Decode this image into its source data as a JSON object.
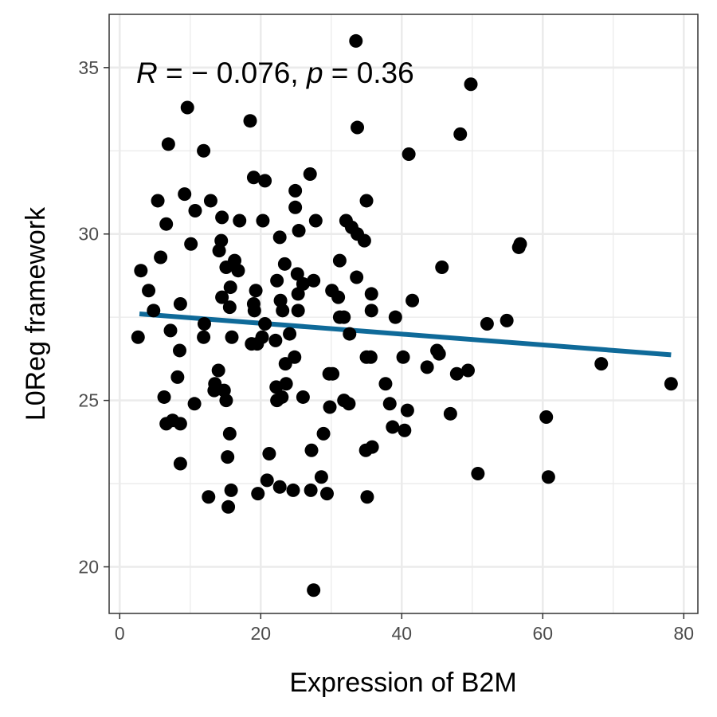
{
  "chart_data": {
    "type": "scatter",
    "xlabel": "Expression of B2M",
    "ylabel": "L0Reg framework",
    "xlim": [
      -1.5,
      82
    ],
    "ylim": [
      18.6,
      36.6
    ],
    "x_ticks": [
      0,
      20,
      40,
      60,
      80
    ],
    "y_ticks": [
      20,
      25,
      30,
      35
    ],
    "grid": true,
    "annotation": {
      "r_symbol": "R",
      "r_text": " = − 0.076, ",
      "p_symbol": "p",
      "p_text": " = 0.36"
    },
    "fit_line": {
      "x": [
        2.8,
        78.2
      ],
      "y": [
        27.6,
        26.37
      ],
      "color": "#0f6a99"
    },
    "point_color": "#000000",
    "points": [
      {
        "x": 33.5,
        "y": 35.8
      },
      {
        "x": 49.8,
        "y": 34.5
      },
      {
        "x": 9.6,
        "y": 33.8
      },
      {
        "x": 18.5,
        "y": 33.4
      },
      {
        "x": 33.7,
        "y": 33.2
      },
      {
        "x": 48.3,
        "y": 33.0
      },
      {
        "x": 6.9,
        "y": 32.7
      },
      {
        "x": 11.9,
        "y": 32.5
      },
      {
        "x": 41.0,
        "y": 32.4
      },
      {
        "x": 27.0,
        "y": 31.8
      },
      {
        "x": 19.0,
        "y": 31.7
      },
      {
        "x": 20.6,
        "y": 31.6
      },
      {
        "x": 24.9,
        "y": 31.3
      },
      {
        "x": 9.2,
        "y": 31.2
      },
      {
        "x": 5.4,
        "y": 31.0
      },
      {
        "x": 12.9,
        "y": 31.0
      },
      {
        "x": 35.0,
        "y": 31.0
      },
      {
        "x": 24.9,
        "y": 30.8
      },
      {
        "x": 10.7,
        "y": 30.7
      },
      {
        "x": 14.5,
        "y": 30.5
      },
      {
        "x": 32.1,
        "y": 30.4
      },
      {
        "x": 6.6,
        "y": 30.3
      },
      {
        "x": 17.0,
        "y": 30.4
      },
      {
        "x": 20.3,
        "y": 30.4
      },
      {
        "x": 27.8,
        "y": 30.4
      },
      {
        "x": 32.9,
        "y": 30.2
      },
      {
        "x": 25.4,
        "y": 30.1
      },
      {
        "x": 33.7,
        "y": 30.0
      },
      {
        "x": 22.7,
        "y": 29.9
      },
      {
        "x": 34.7,
        "y": 29.8
      },
      {
        "x": 14.4,
        "y": 29.8
      },
      {
        "x": 10.1,
        "y": 29.7
      },
      {
        "x": 56.8,
        "y": 29.7
      },
      {
        "x": 56.6,
        "y": 29.6
      },
      {
        "x": 14.1,
        "y": 29.5
      },
      {
        "x": 5.8,
        "y": 29.3
      },
      {
        "x": 31.2,
        "y": 29.2
      },
      {
        "x": 16.3,
        "y": 29.2
      },
      {
        "x": 23.4,
        "y": 29.1
      },
      {
        "x": 15.1,
        "y": 29.0
      },
      {
        "x": 45.7,
        "y": 29.0
      },
      {
        "x": 3.0,
        "y": 28.9
      },
      {
        "x": 16.8,
        "y": 28.9
      },
      {
        "x": 25.2,
        "y": 28.8
      },
      {
        "x": 33.6,
        "y": 28.7
      },
      {
        "x": 22.3,
        "y": 28.6
      },
      {
        "x": 27.5,
        "y": 28.6
      },
      {
        "x": 26.0,
        "y": 28.5
      },
      {
        "x": 15.7,
        "y": 28.4
      },
      {
        "x": 4.1,
        "y": 28.3
      },
      {
        "x": 19.3,
        "y": 28.3
      },
      {
        "x": 30.1,
        "y": 28.3
      },
      {
        "x": 35.7,
        "y": 28.2
      },
      {
        "x": 25.3,
        "y": 28.2
      },
      {
        "x": 31.0,
        "y": 28.1
      },
      {
        "x": 14.5,
        "y": 28.1
      },
      {
        "x": 22.8,
        "y": 28.0
      },
      {
        "x": 41.5,
        "y": 28.0
      },
      {
        "x": 8.6,
        "y": 27.9
      },
      {
        "x": 19.0,
        "y": 27.9
      },
      {
        "x": 15.6,
        "y": 27.8
      },
      {
        "x": 19.1,
        "y": 27.7
      },
      {
        "x": 23.1,
        "y": 27.7
      },
      {
        "x": 35.7,
        "y": 27.7
      },
      {
        "x": 4.8,
        "y": 27.7
      },
      {
        "x": 25.3,
        "y": 27.7
      },
      {
        "x": 39.1,
        "y": 27.5
      },
      {
        "x": 31.2,
        "y": 27.5
      },
      {
        "x": 54.9,
        "y": 27.4
      },
      {
        "x": 31.8,
        "y": 27.5
      },
      {
        "x": 20.6,
        "y": 27.3
      },
      {
        "x": 12.0,
        "y": 27.3
      },
      {
        "x": 52.1,
        "y": 27.3
      },
      {
        "x": 7.2,
        "y": 27.1
      },
      {
        "x": 24.1,
        "y": 27.0
      },
      {
        "x": 32.6,
        "y": 27.0
      },
      {
        "x": 2.6,
        "y": 26.9
      },
      {
        "x": 11.9,
        "y": 26.9
      },
      {
        "x": 15.9,
        "y": 26.9
      },
      {
        "x": 20.2,
        "y": 26.9
      },
      {
        "x": 22.1,
        "y": 26.8
      },
      {
        "x": 18.7,
        "y": 26.7
      },
      {
        "x": 19.5,
        "y": 26.7
      },
      {
        "x": 8.5,
        "y": 26.5
      },
      {
        "x": 45.0,
        "y": 26.5
      },
      {
        "x": 45.3,
        "y": 26.4
      },
      {
        "x": 40.2,
        "y": 26.3
      },
      {
        "x": 35.0,
        "y": 26.3
      },
      {
        "x": 35.6,
        "y": 26.3
      },
      {
        "x": 24.8,
        "y": 26.3
      },
      {
        "x": 68.3,
        "y": 26.1
      },
      {
        "x": 23.5,
        "y": 26.1
      },
      {
        "x": 43.6,
        "y": 26.0
      },
      {
        "x": 14.0,
        "y": 25.9
      },
      {
        "x": 47.8,
        "y": 25.8
      },
      {
        "x": 49.4,
        "y": 25.9
      },
      {
        "x": 29.7,
        "y": 25.8
      },
      {
        "x": 30.2,
        "y": 25.8
      },
      {
        "x": 8.2,
        "y": 25.7
      },
      {
        "x": 78.2,
        "y": 25.5
      },
      {
        "x": 23.6,
        "y": 25.5
      },
      {
        "x": 13.5,
        "y": 25.5
      },
      {
        "x": 37.7,
        "y": 25.5
      },
      {
        "x": 22.2,
        "y": 25.4
      },
      {
        "x": 14.8,
        "y": 25.3
      },
      {
        "x": 13.4,
        "y": 25.3
      },
      {
        "x": 26.0,
        "y": 25.1
      },
      {
        "x": 6.3,
        "y": 25.1
      },
      {
        "x": 23.0,
        "y": 25.1
      },
      {
        "x": 31.8,
        "y": 25.0
      },
      {
        "x": 15.1,
        "y": 25.0
      },
      {
        "x": 22.3,
        "y": 25.0
      },
      {
        "x": 32.5,
        "y": 24.9
      },
      {
        "x": 38.3,
        "y": 24.9
      },
      {
        "x": 10.6,
        "y": 24.9
      },
      {
        "x": 29.8,
        "y": 24.8
      },
      {
        "x": 40.8,
        "y": 24.7
      },
      {
        "x": 46.9,
        "y": 24.6
      },
      {
        "x": 60.5,
        "y": 24.5
      },
      {
        "x": 7.5,
        "y": 24.4
      },
      {
        "x": 6.6,
        "y": 24.3
      },
      {
        "x": 8.6,
        "y": 24.3
      },
      {
        "x": 38.7,
        "y": 24.2
      },
      {
        "x": 40.4,
        "y": 24.1
      },
      {
        "x": 28.9,
        "y": 24.0
      },
      {
        "x": 15.6,
        "y": 24.0
      },
      {
        "x": 35.8,
        "y": 23.6
      },
      {
        "x": 34.9,
        "y": 23.5
      },
      {
        "x": 21.2,
        "y": 23.4
      },
      {
        "x": 27.2,
        "y": 23.5
      },
      {
        "x": 15.3,
        "y": 23.3
      },
      {
        "x": 8.6,
        "y": 23.1
      },
      {
        "x": 50.8,
        "y": 22.8
      },
      {
        "x": 60.8,
        "y": 22.7
      },
      {
        "x": 28.6,
        "y": 22.7
      },
      {
        "x": 20.9,
        "y": 22.6
      },
      {
        "x": 22.7,
        "y": 22.4
      },
      {
        "x": 24.6,
        "y": 22.3
      },
      {
        "x": 27.1,
        "y": 22.3
      },
      {
        "x": 15.8,
        "y": 22.3
      },
      {
        "x": 19.6,
        "y": 22.2
      },
      {
        "x": 29.4,
        "y": 22.2
      },
      {
        "x": 35.1,
        "y": 22.1
      },
      {
        "x": 12.6,
        "y": 22.1
      },
      {
        "x": 15.4,
        "y": 21.8
      },
      {
        "x": 27.5,
        "y": 19.3
      }
    ]
  }
}
